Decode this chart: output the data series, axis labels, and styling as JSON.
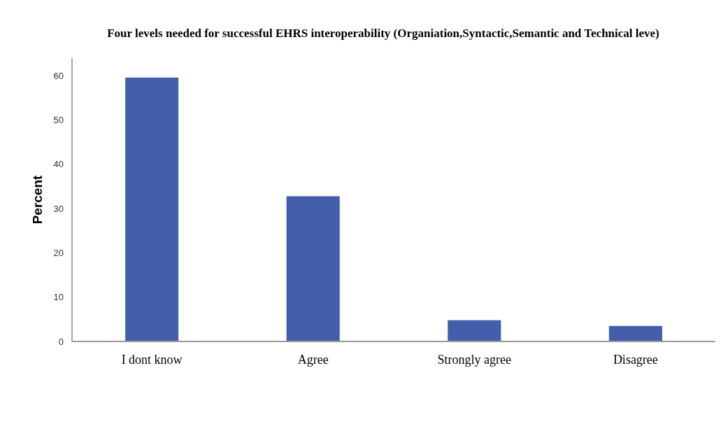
{
  "chart_data": {
    "type": "bar",
    "title": "Four levels needed for successful EHRS interoperability (Organiation,Syntactic,Semantic and Technical leve)",
    "ylabel": "Percent",
    "categories": [
      "I dont know",
      "Agree",
      "Strongly agree",
      "Disagree"
    ],
    "values": [
      59.6,
      32.8,
      4.8,
      3.5
    ],
    "color": "#435fab",
    "ylim": [
      0,
      64
    ],
    "yticks": [
      0,
      10,
      20,
      30,
      40,
      50,
      60
    ],
    "grid": false
  }
}
